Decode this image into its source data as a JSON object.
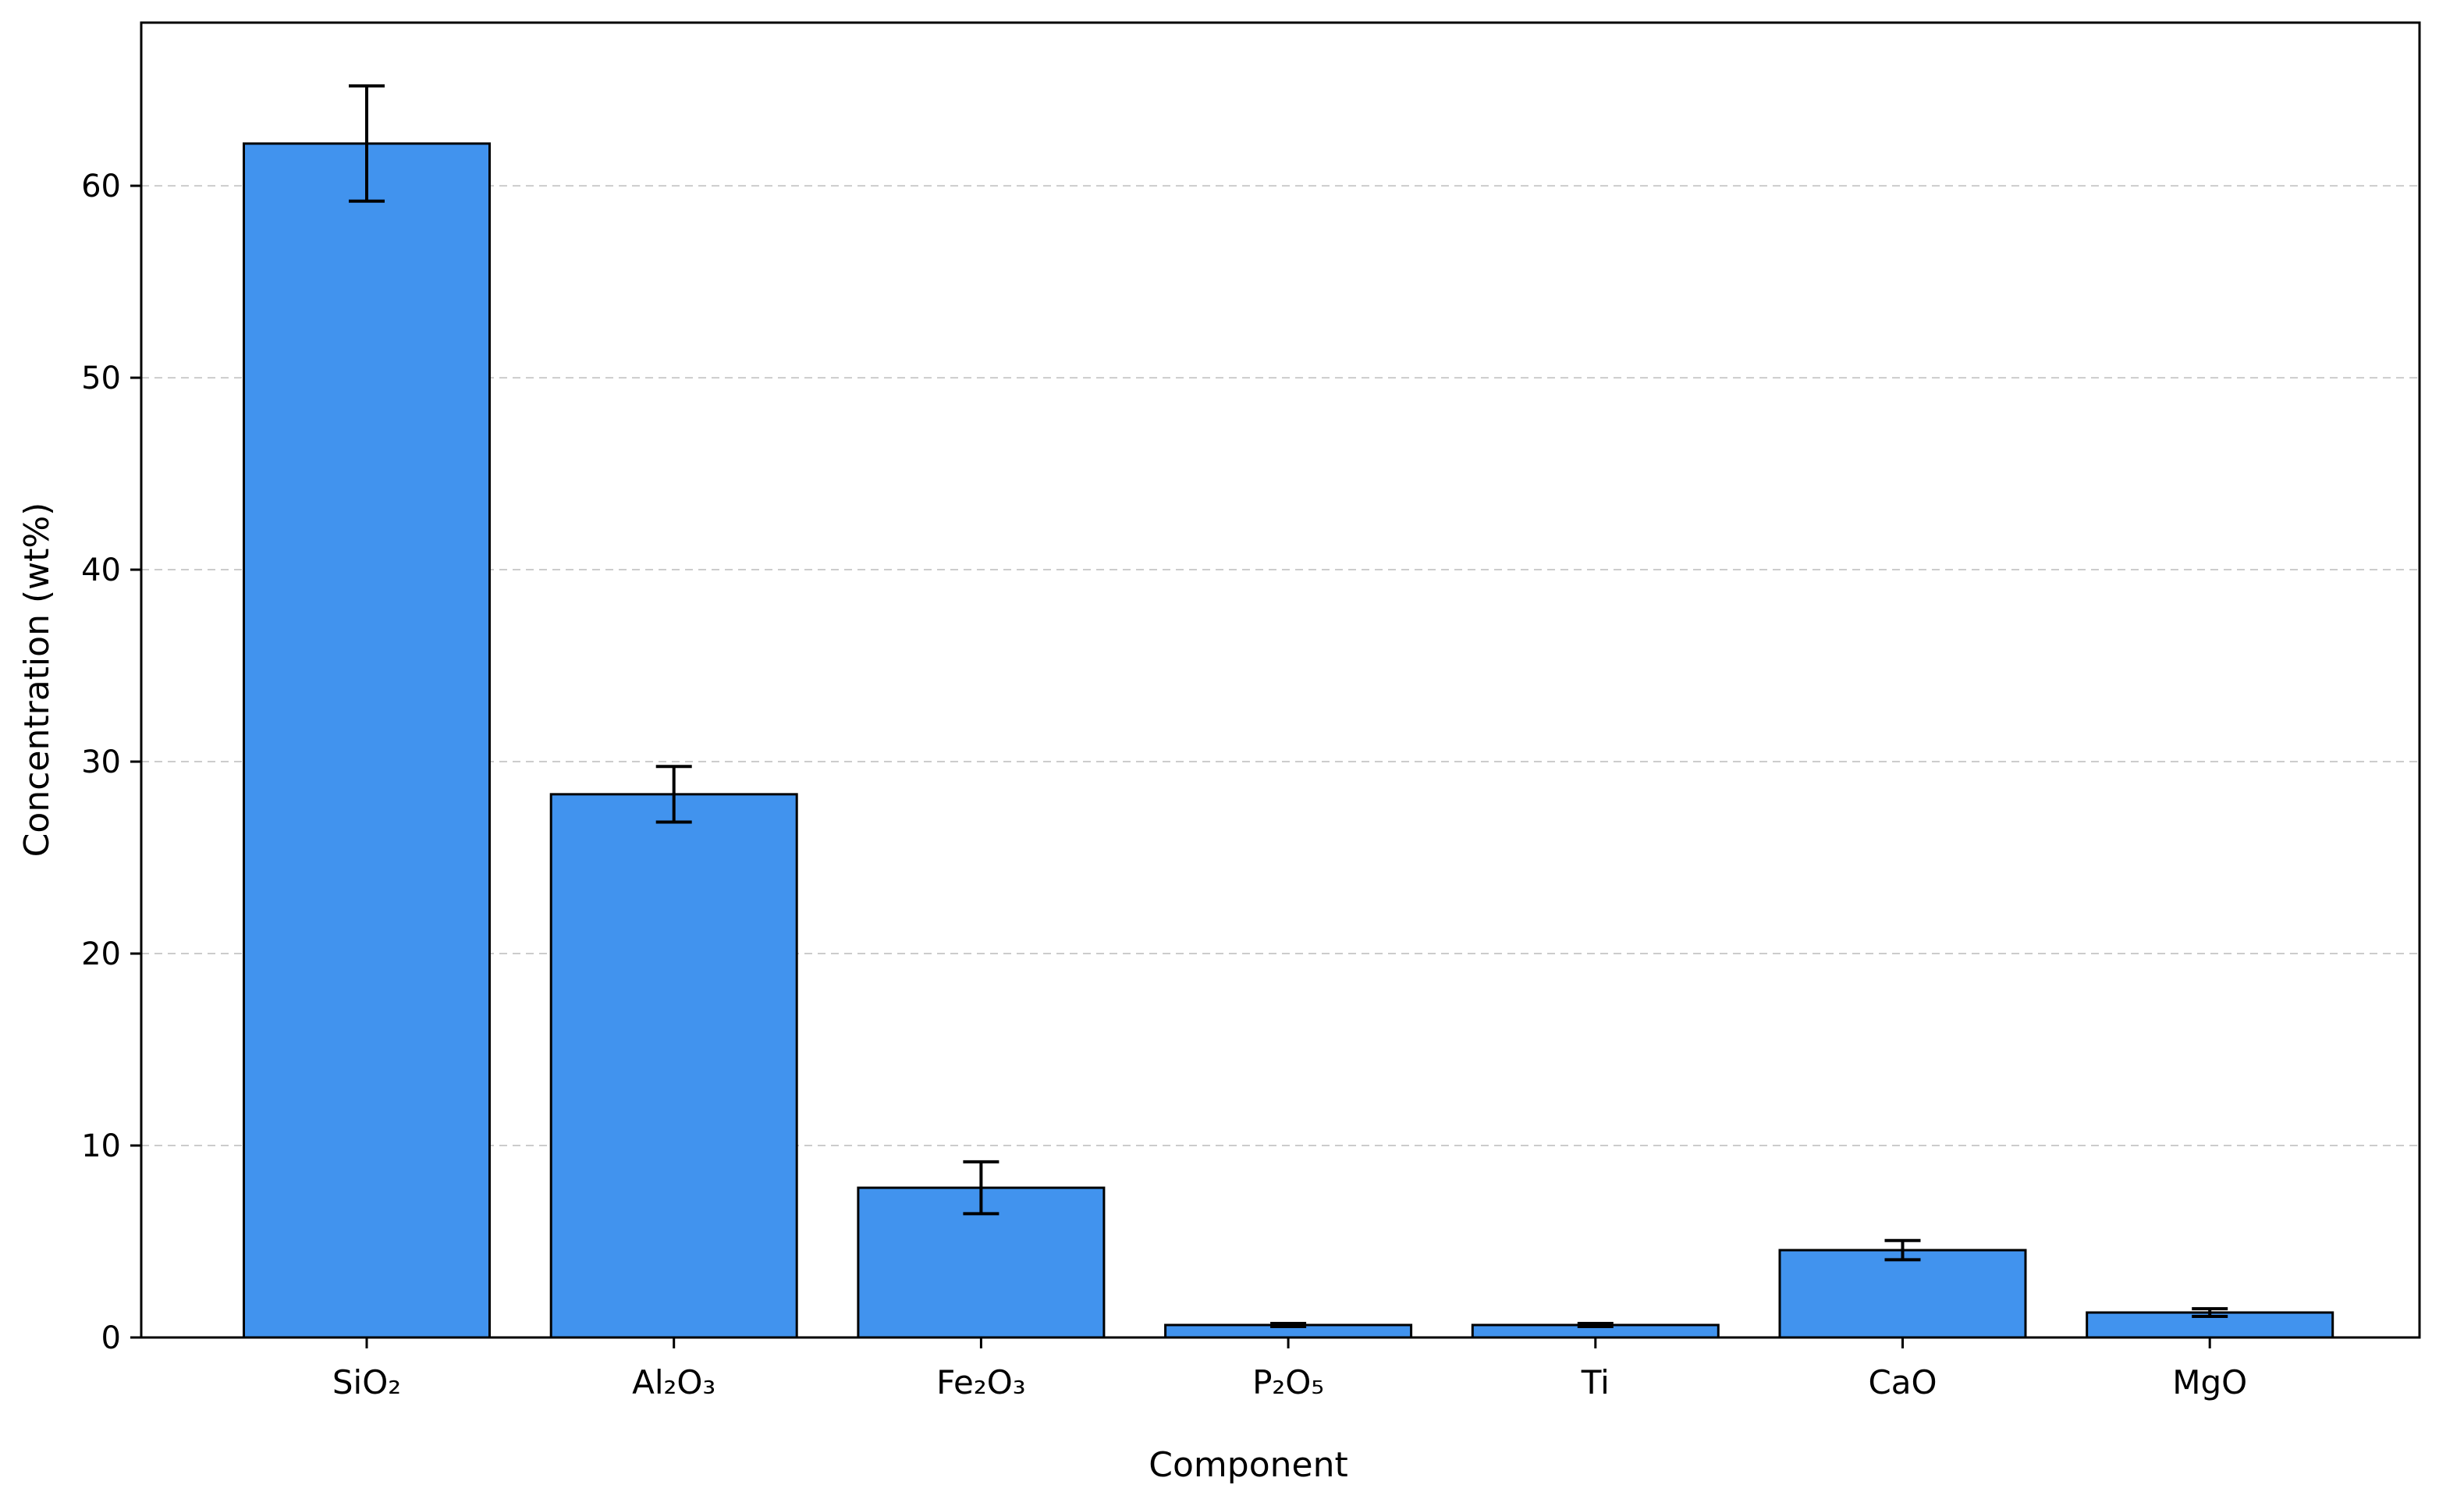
{
  "chart_data": {
    "type": "bar",
    "title": "",
    "xlabel": "Component",
    "ylabel": "Concentration (wt%)",
    "categories": [
      "SiO₂",
      "Al₂O₃",
      "Fe₂O₃",
      "P₂O₅",
      "Ti",
      "CaO",
      "MgO"
    ],
    "values": [
      62.2,
      28.3,
      7.8,
      0.65,
      0.65,
      4.55,
      1.3
    ],
    "errors": [
      3.0,
      1.45,
      1.35,
      0.08,
      0.08,
      0.5,
      0.2
    ],
    "ylim": [
      0,
      68.5
    ],
    "yticks": [
      0,
      10,
      20,
      30,
      40,
      50,
      60
    ],
    "grid": "y-dashed",
    "bar_color": "#4193ee",
    "edge_color": "#000000",
    "legend": "none"
  }
}
